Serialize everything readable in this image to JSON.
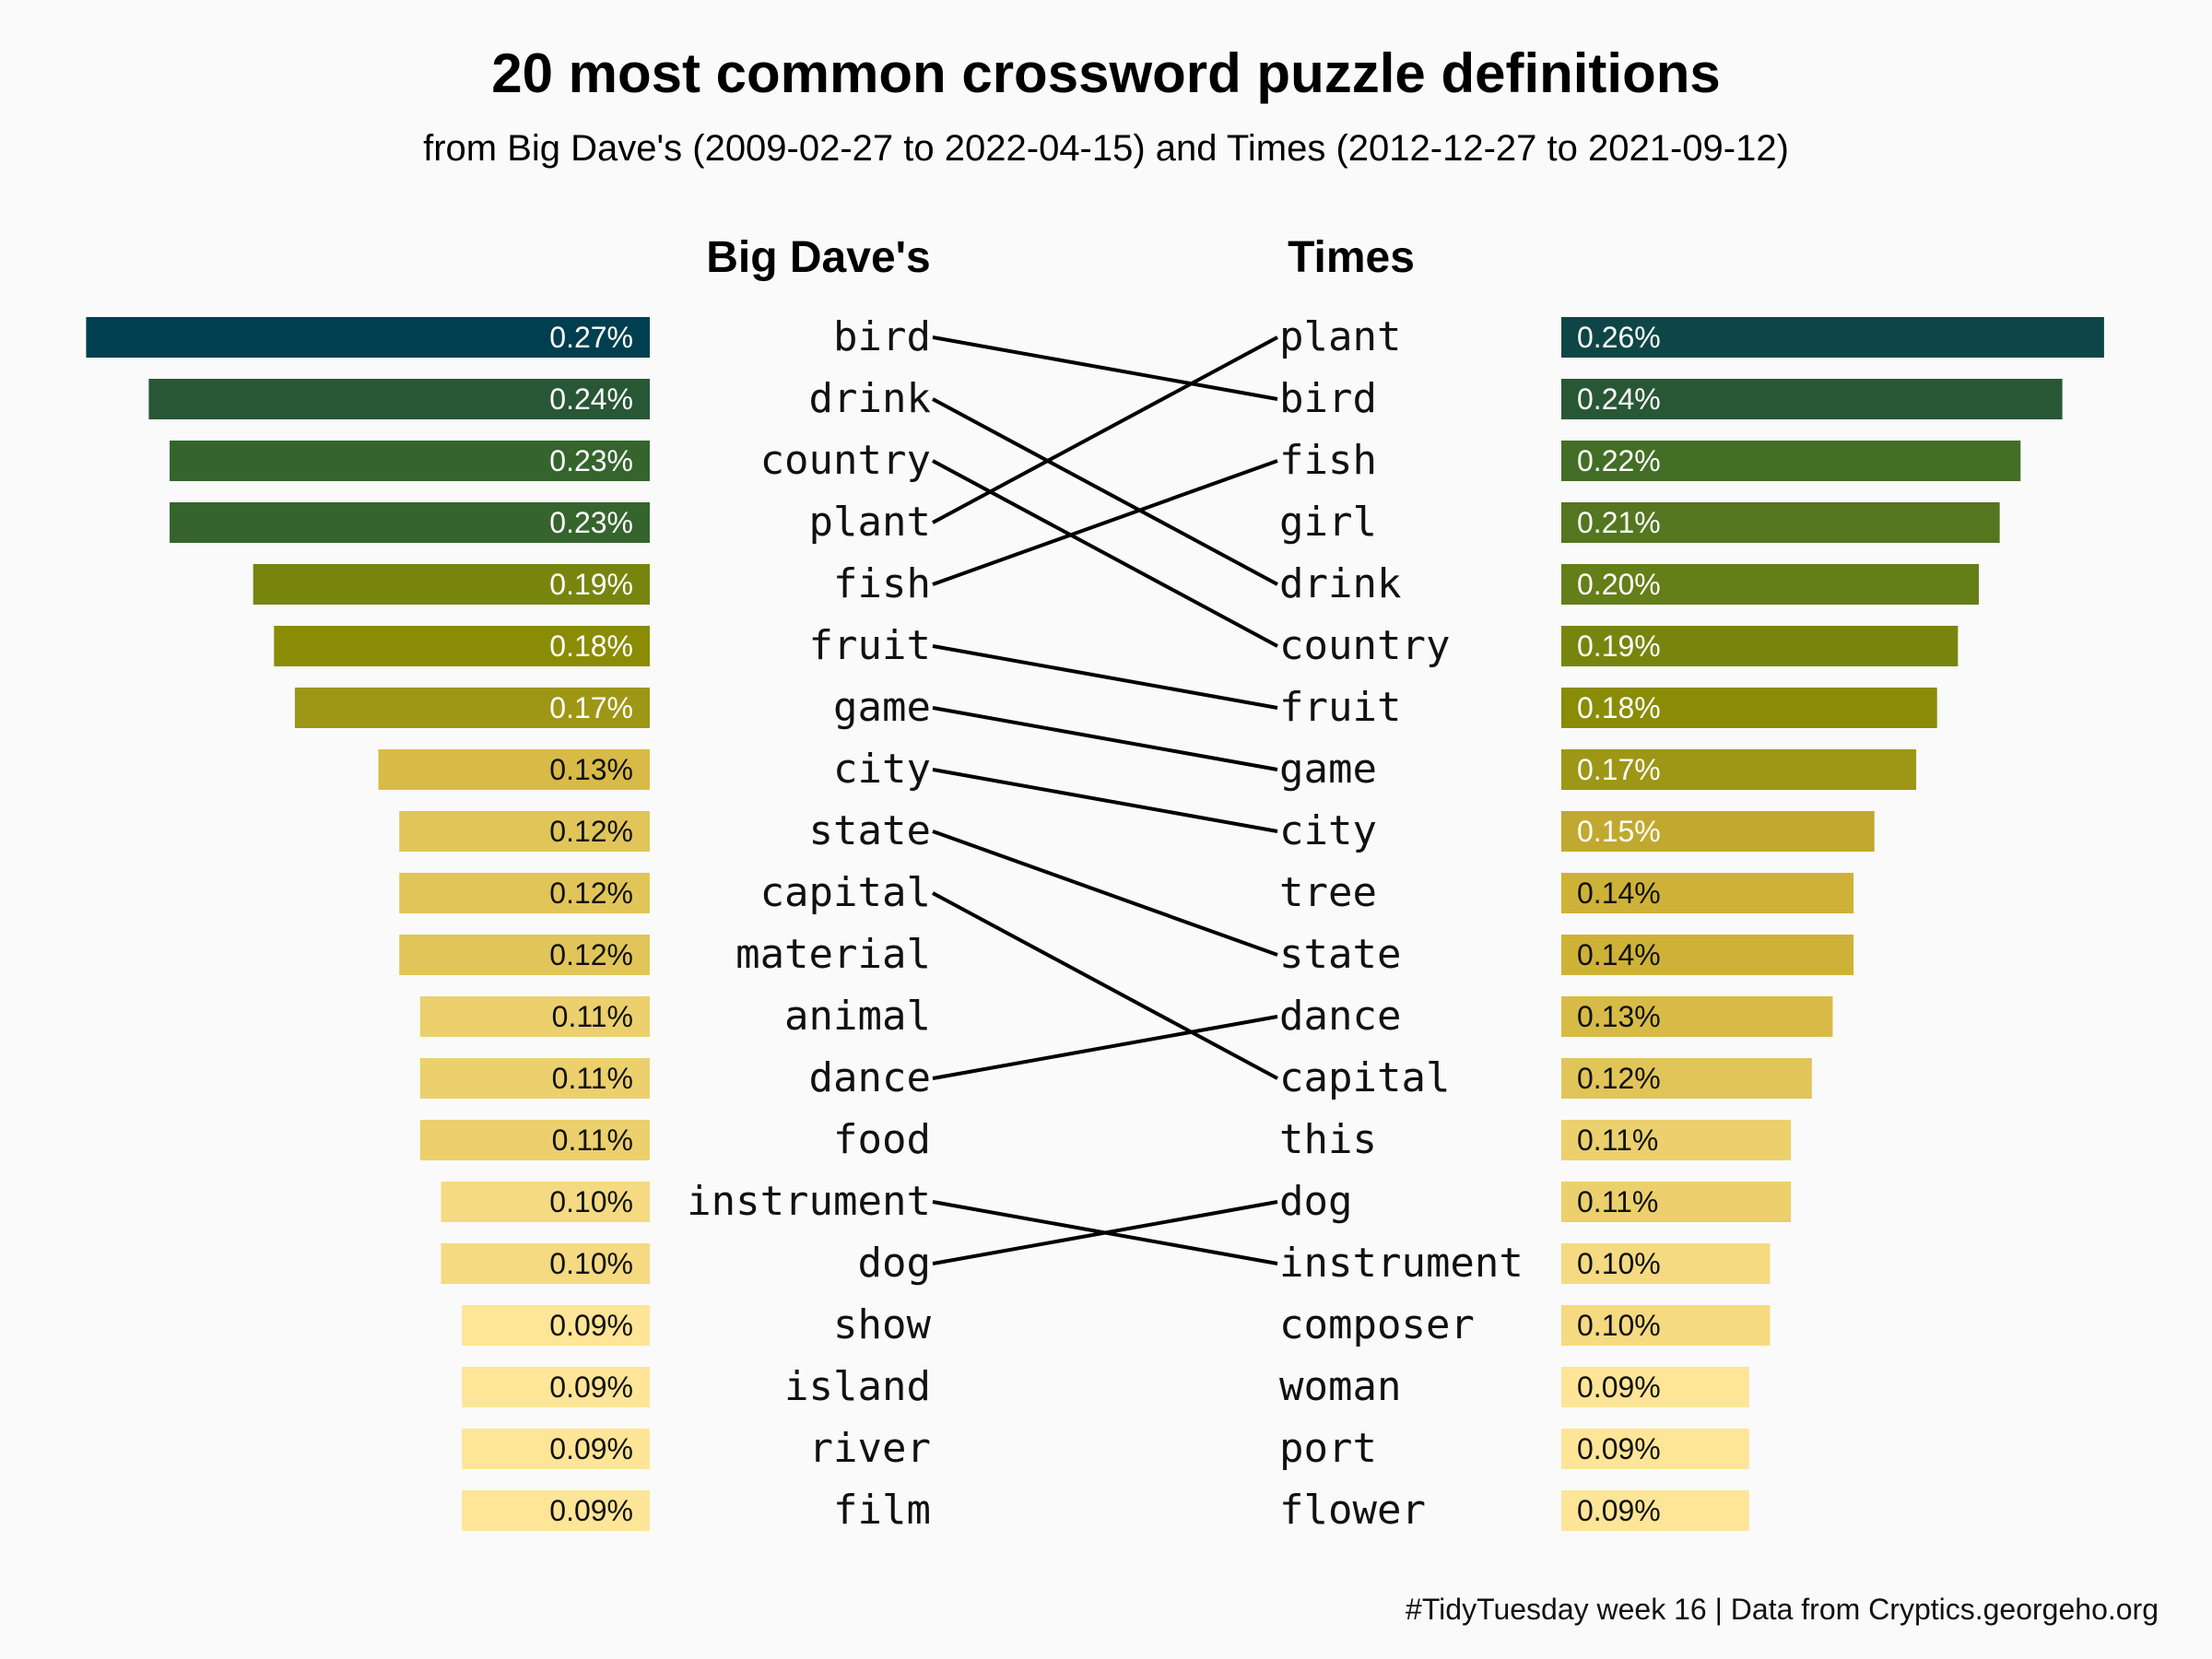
{
  "title": "20 most common crossword puzzle definitions",
  "subtitle": "from Big Dave's (2009-02-27 to 2022-04-15) and Times (2012-12-27 to 2021-09-12)",
  "caption": "#TidyTuesday week 16  |  Data from Cryptics.georgeho.org",
  "colors": {
    "background": "#fafafa",
    "scale": [
      "#003f4f",
      "#1f4e3d",
      "#3b6a28",
      "#5f7c1a",
      "#8a8c06",
      "#b8a328",
      "#d4b63c",
      "#e8cd68",
      "#ffe597"
    ],
    "link": "#000000"
  },
  "chart_data": [
    {
      "type": "bar",
      "name": "Big Dave's",
      "title": "Big Dave's",
      "orientation": "horizontal-leftward",
      "unit": "%",
      "categories": [
        "bird",
        "drink",
        "country",
        "plant",
        "fish",
        "fruit",
        "game",
        "city",
        "state",
        "capital",
        "material",
        "animal",
        "dance",
        "food",
        "instrument",
        "dog",
        "show",
        "island",
        "river",
        "film"
      ],
      "values": [
        0.27,
        0.24,
        0.23,
        0.23,
        0.19,
        0.18,
        0.17,
        0.13,
        0.12,
        0.12,
        0.12,
        0.11,
        0.11,
        0.11,
        0.1,
        0.1,
        0.09,
        0.09,
        0.09,
        0.09
      ],
      "labels": [
        "0.27%",
        "0.24%",
        "0.23%",
        "0.23%",
        "0.19%",
        "0.18%",
        "0.17%",
        "0.13%",
        "0.12%",
        "0.12%",
        "0.12%",
        "0.11%",
        "0.11%",
        "0.11%",
        "0.10%",
        "0.10%",
        "0.09%",
        "0.09%",
        "0.09%",
        "0.09%"
      ]
    },
    {
      "type": "bar",
      "name": "Times",
      "title": "Times",
      "orientation": "horizontal-rightward",
      "unit": "%",
      "categories": [
        "plant",
        "bird",
        "fish",
        "girl",
        "drink",
        "country",
        "fruit",
        "game",
        "city",
        "tree",
        "state",
        "dance",
        "capital",
        "this",
        "dog",
        "instrument",
        "composer",
        "woman",
        "port",
        "flower"
      ],
      "values": [
        0.26,
        0.24,
        0.22,
        0.21,
        0.2,
        0.19,
        0.18,
        0.17,
        0.15,
        0.14,
        0.14,
        0.13,
        0.12,
        0.11,
        0.11,
        0.1,
        0.1,
        0.09,
        0.09,
        0.09
      ],
      "labels": [
        "0.26%",
        "0.24%",
        "0.22%",
        "0.21%",
        "0.20%",
        "0.19%",
        "0.18%",
        "0.17%",
        "0.15%",
        "0.14%",
        "0.14%",
        "0.13%",
        "0.12%",
        "0.11%",
        "0.11%",
        "0.10%",
        "0.10%",
        "0.09%",
        "0.09%",
        "0.09%"
      ]
    },
    {
      "type": "slope",
      "note_links": "words appearing in both top-20 lists are connected by lines",
      "links": [
        [
          "bird",
          "bird"
        ],
        [
          "drink",
          "drink"
        ],
        [
          "country",
          "country"
        ],
        [
          "plant",
          "plant"
        ],
        [
          "fish",
          "fish"
        ],
        [
          "fruit",
          "fruit"
        ],
        [
          "game",
          "game"
        ],
        [
          "city",
          "city"
        ],
        [
          "state",
          "state"
        ],
        [
          "capital",
          "capital"
        ],
        [
          "dance",
          "dance"
        ],
        [
          "instrument",
          "instrument"
        ],
        [
          "dog",
          "dog"
        ]
      ]
    }
  ]
}
